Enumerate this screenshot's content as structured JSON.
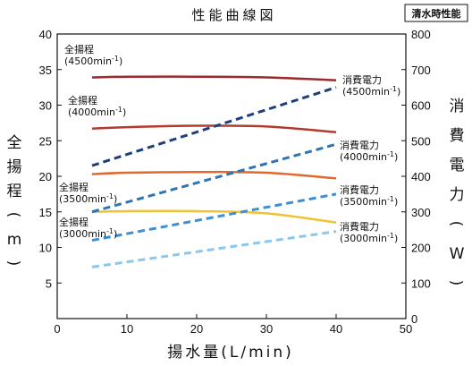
{
  "chart_data": {
    "type": "line",
    "title": "性能曲線図",
    "badge": "清水時性能",
    "xlabel": "揚水量(L/min)",
    "ylabel_left": "全揚程(m)",
    "ylabel_right": "消費電力(W)",
    "xlim": [
      0,
      50
    ],
    "ylim_left": [
      0,
      40
    ],
    "ylim_right": [
      0,
      800
    ],
    "x_ticks": [
      0,
      10,
      20,
      30,
      40,
      50
    ],
    "y_ticks_left": [
      5,
      10,
      15,
      20,
      25,
      30,
      35,
      40
    ],
    "y_ticks_right": [
      0,
      100,
      200,
      300,
      400,
      500,
      600,
      700,
      800
    ],
    "grid": false,
    "legend": "none",
    "series": [
      {
        "group": "head",
        "axis": "left",
        "style": "solid",
        "color": "#9e2a2b",
        "label": [
          "全揚程",
          "(4500min",
          "-1",
          ")"
        ],
        "x": [
          5,
          10,
          20,
          30,
          40
        ],
        "y": [
          33.9,
          34.0,
          34.0,
          33.9,
          33.5
        ]
      },
      {
        "group": "head",
        "axis": "left",
        "style": "solid",
        "color": "#b33b2e",
        "label": [
          "全揚程",
          "(4000min",
          "-1",
          ")"
        ],
        "x": [
          5,
          10,
          20,
          30,
          40
        ],
        "y": [
          26.7,
          26.9,
          27.1,
          27.0,
          26.2
        ]
      },
      {
        "group": "head",
        "axis": "left",
        "style": "solid",
        "color": "#e06a2e",
        "label": [
          "全揚程",
          "(3500min",
          "-1",
          ")"
        ],
        "x": [
          5,
          10,
          20,
          30,
          40
        ],
        "y": [
          20.3,
          20.5,
          20.6,
          20.5,
          19.7
        ]
      },
      {
        "group": "head",
        "axis": "left",
        "style": "solid",
        "color": "#f1c232",
        "label": [
          "全揚程",
          "(3000min",
          "-1",
          ")"
        ],
        "x": [
          5,
          10,
          20,
          30,
          40
        ],
        "y": [
          15.0,
          15.1,
          15.1,
          14.8,
          13.5
        ]
      },
      {
        "group": "power",
        "axis": "right",
        "style": "dashed",
        "color": "#1f3f7a",
        "label": [
          "消費電力",
          "(4500min",
          "-1",
          ")"
        ],
        "x": [
          5,
          40
        ],
        "y": [
          430,
          650
        ]
      },
      {
        "group": "power",
        "axis": "right",
        "style": "dashed",
        "color": "#2e75b6",
        "label": [
          "消費電力",
          "(4000min",
          "-1",
          ")"
        ],
        "x": [
          5,
          40
        ],
        "y": [
          300,
          490
        ]
      },
      {
        "group": "power",
        "axis": "right",
        "style": "dashed",
        "color": "#3d8fd1",
        "label": [
          "消費電力",
          "(3500min",
          "-1",
          ")"
        ],
        "x": [
          5,
          40
        ],
        "y": [
          220,
          350
        ]
      },
      {
        "group": "power",
        "axis": "right",
        "style": "dashed",
        "color": "#8cc8ee",
        "label": [
          "消費電力",
          "(3000min",
          "-1",
          ")"
        ],
        "x": [
          5,
          40
        ],
        "y": [
          145,
          245
        ]
      }
    ]
  }
}
